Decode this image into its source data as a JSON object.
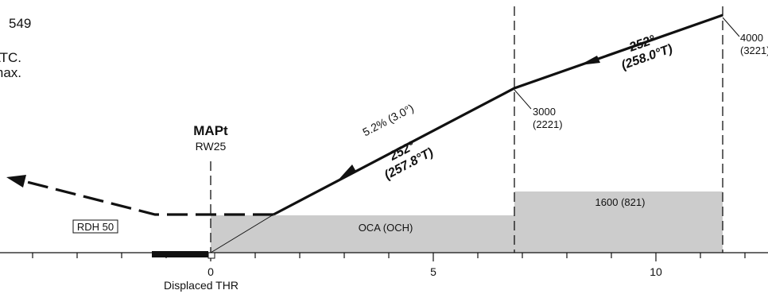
{
  "notes": {
    "line1": "549",
    "line2": "ATC.",
    "line3": "max."
  },
  "mapt": {
    "title": "MAPt",
    "runway": "RW25"
  },
  "threshold": {
    "label": "Displaced THR",
    "rdh": "RDH 50"
  },
  "fixes": [
    {
      "altitude": "4000",
      "height": "(3221)"
    },
    {
      "altitude": "3000",
      "height": "(2221)"
    }
  ],
  "segments": {
    "upper": {
      "magnetic": "252°",
      "true": "(258.0°T)"
    },
    "final": {
      "gradient": "5.2% (3.0°)",
      "magnetic": "252°",
      "true": "(257.8°T)"
    }
  },
  "obstacle": {
    "final_label": "OCA (OCH)",
    "intermediate_label": "1600 (821)"
  },
  "distance_axis": {
    "labels": [
      "0",
      "5",
      "10"
    ]
  },
  "colors": {
    "line": "#111111",
    "shade": "#cccccc",
    "runway": "#111111"
  }
}
